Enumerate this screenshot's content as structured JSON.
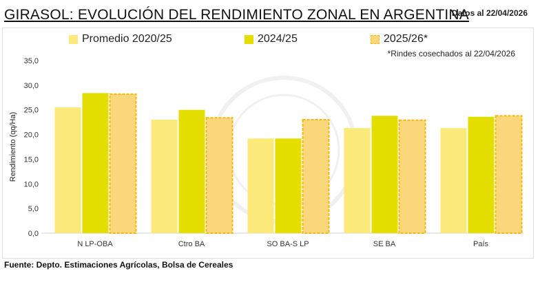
{
  "title": "GIRASOL: EVOLUCIÓN DEL RENDIMIENTO ZONAL EN ARGENTINA",
  "date_note": "Datos al 22/04/2026",
  "footnote": "*Rindes cosechados al 22/04/2026",
  "source": "Fuente: Depto. Estimaciones Agrícolas, Bolsa de Cereales",
  "colors": {
    "prom": "#fbe97a",
    "s2425": "#e3dd00",
    "s2526": "#fbd77c",
    "s2526_border": "#f2b90c"
  },
  "chart_data": {
    "type": "bar",
    "title": "GIRASOL: EVOLUCIÓN DEL RENDIMIENTO ZONAL EN ARGENTINA",
    "xlabel": "",
    "ylabel": "Rendimiento (qq/Ha)",
    "ylim": [
      0,
      35
    ],
    "yticks": [
      "0,0",
      "5,0",
      "10,0",
      "15,0",
      "20,0",
      "25,0",
      "30,0",
      "35,0"
    ],
    "categories": [
      "N LP-OBA",
      "Ctro BA",
      "SO BA-S LP",
      "SE BA",
      "País"
    ],
    "series": [
      {
        "name": "Promedio 2020/25",
        "values": [
          25.5,
          23.0,
          19.2,
          21.3,
          21.3
        ]
      },
      {
        "name": "2024/25",
        "values": [
          28.4,
          25.0,
          19.2,
          23.8,
          23.6
        ]
      },
      {
        "name": "2025/26*",
        "values": [
          28.2,
          23.4,
          23.0,
          22.9,
          23.8
        ]
      }
    ],
    "legend": "top",
    "grid": false
  }
}
